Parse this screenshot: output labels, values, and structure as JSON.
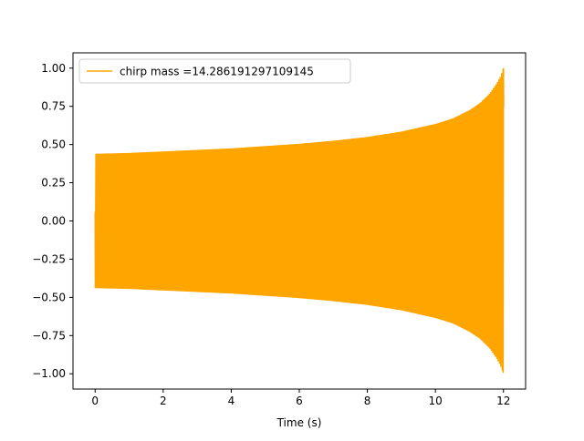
{
  "chart_data": {
    "type": "line",
    "title": "",
    "xlabel": "Time (s)",
    "ylabel": "",
    "xlim": [
      -0.65,
      12.65
    ],
    "ylim": [
      -1.1,
      1.1
    ],
    "xticks": [
      0,
      2,
      4,
      6,
      8,
      10,
      12
    ],
    "xtick_labels": [
      "0",
      "2",
      "4",
      "6",
      "8",
      "10",
      "12"
    ],
    "yticks": [
      -1.0,
      -0.75,
      -0.5,
      -0.25,
      0.0,
      0.25,
      0.5,
      0.75,
      1.0
    ],
    "ytick_labels": [
      "−1.00",
      "−0.75",
      "−0.50",
      "−0.25",
      "0.00",
      "0.25",
      "0.50",
      "0.75",
      "1.00"
    ],
    "grid": false,
    "legend_position": "upper-left",
    "series": [
      {
        "name": "chirp mass =14.286191297109145",
        "color": "#FFA500",
        "style": "dense oscillating chirp waveform",
        "envelope": {
          "t": [
            0,
            0.05,
            1,
            2,
            3,
            4,
            5,
            6,
            7,
            8,
            9,
            10,
            10.5,
            11,
            11.3,
            11.6,
            11.8,
            11.9,
            11.95,
            12.0
          ],
          "amplitude": [
            0.44,
            0.44,
            0.445,
            0.455,
            0.465,
            0.475,
            0.49,
            0.505,
            0.525,
            0.55,
            0.585,
            0.635,
            0.67,
            0.725,
            0.77,
            0.835,
            0.9,
            0.94,
            0.97,
            1.0
          ]
        },
        "start_value": 0.06,
        "end_value": 0.75
      }
    ]
  }
}
